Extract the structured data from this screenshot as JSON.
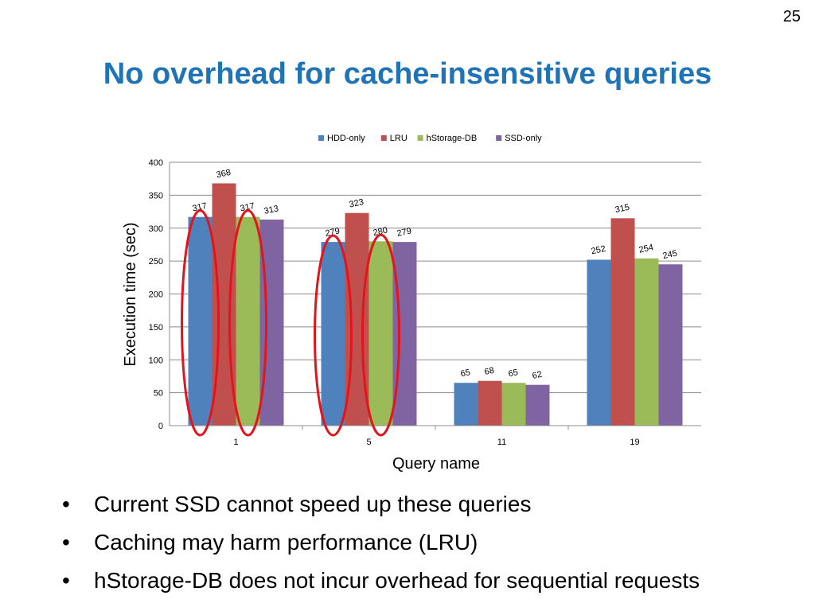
{
  "slide": {
    "page_number": "25",
    "title": "No overhead for cache-insensitive queries"
  },
  "bullets": [
    "Current SSD cannot speed up these queries",
    "Caching may harm performance (LRU)",
    "hStorage-DB does not incur overhead for sequential requests"
  ],
  "chart_data": {
    "type": "bar",
    "title": "",
    "xlabel": "Query name",
    "ylabel": "Execution time (sec)",
    "categories": [
      "1",
      "5",
      "11",
      "19"
    ],
    "ylim": [
      0,
      400
    ],
    "yticks": [
      0,
      50,
      100,
      150,
      200,
      250,
      300,
      350,
      400
    ],
    "grid": true,
    "legend_position": "top",
    "series": [
      {
        "name": "HDD-only",
        "color": "#4f81bd",
        "values": [
          317,
          279,
          65,
          252
        ]
      },
      {
        "name": "LRU",
        "color": "#c0504d",
        "values": [
          368,
          323,
          68,
          315
        ]
      },
      {
        "name": "hStorage-DB",
        "color": "#9bbb59",
        "values": [
          317,
          280,
          65,
          254
        ]
      },
      {
        "name": "SSD-only",
        "color": "#8064a2",
        "values": [
          313,
          279,
          62,
          245
        ]
      }
    ],
    "annotations": {
      "highlight_color": "#e3141b",
      "highlighted_bars": [
        {
          "category": "1",
          "series": "HDD-only"
        },
        {
          "category": "1",
          "series": "hStorage-DB"
        },
        {
          "category": "5",
          "series": "HDD-only"
        },
        {
          "category": "5",
          "series": "hStorage-DB"
        }
      ]
    }
  }
}
